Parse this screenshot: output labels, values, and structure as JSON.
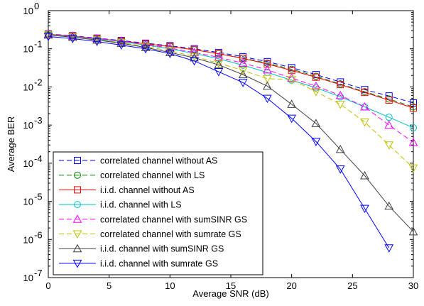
{
  "chart_data": {
    "type": "line",
    "xlabel": "Average SNR (dB)",
    "ylabel": "Average BER",
    "xlim": [
      0,
      30
    ],
    "ylim_exponents": [
      -7,
      0
    ],
    "y_scale": "log",
    "x_ticks": [
      "0",
      "5",
      "10",
      "15",
      "20",
      "25",
      "30"
    ],
    "y_ticks": [
      {
        "base": "10",
        "exp": "-7"
      },
      {
        "base": "10",
        "exp": "-6"
      },
      {
        "base": "10",
        "exp": "-5"
      },
      {
        "base": "10",
        "exp": "-4"
      },
      {
        "base": "10",
        "exp": "-3"
      },
      {
        "base": "10",
        "exp": "-2"
      },
      {
        "base": "10",
        "exp": "-1"
      },
      {
        "base": "10",
        "exp": "0"
      }
    ],
    "grid": false,
    "legend_position": "bottom-left",
    "series": [
      {
        "name": "correlated channel without AS",
        "color": "#0000ff",
        "dash": "dashed",
        "marker": "square",
        "x": [
          0,
          2,
          4,
          6,
          8,
          10,
          12,
          14,
          16,
          18,
          20,
          22,
          24,
          26,
          28,
          30
        ],
        "y": [
          0.245,
          0.22,
          0.19,
          0.165,
          0.14,
          0.12,
          0.1,
          0.08,
          0.062,
          0.046,
          0.032,
          0.021,
          0.0135,
          0.0085,
          0.0058,
          0.0038
        ]
      },
      {
        "name": "correlated channel with LS",
        "color": "#008000",
        "dash": "dashed",
        "marker": "circle",
        "x": [
          0,
          2,
          4,
          6,
          8,
          10,
          12,
          14,
          16,
          18,
          20,
          22,
          24,
          26,
          28,
          30
        ],
        "y": [
          0.24,
          0.215,
          0.185,
          0.16,
          0.135,
          0.115,
          0.094,
          0.075,
          0.057,
          0.042,
          0.029,
          0.019,
          0.012,
          0.0075,
          0.0048,
          0.003
        ]
      },
      {
        "name": "i.i.d. channel without AS",
        "color": "#ff0000",
        "dash": "solid",
        "marker": "square",
        "x": [
          0,
          2,
          4,
          6,
          8,
          10,
          12,
          14,
          16,
          18,
          20,
          22,
          24,
          26,
          28,
          30
        ],
        "y": [
          0.24,
          0.215,
          0.185,
          0.16,
          0.135,
          0.115,
          0.094,
          0.074,
          0.056,
          0.04,
          0.027,
          0.018,
          0.0115,
          0.0072,
          0.0045,
          0.0028
        ]
      },
      {
        "name": "i.i.d. channel with LS",
        "color": "#00bfbf",
        "dash": "solid",
        "marker": "circle",
        "x": [
          0,
          2,
          4,
          6,
          8,
          10,
          12,
          14,
          16,
          18,
          20,
          22,
          24,
          26,
          28,
          30
        ],
        "y": [
          0.235,
          0.21,
          0.18,
          0.155,
          0.125,
          0.1,
          0.075,
          0.055,
          0.037,
          0.024,
          0.015,
          0.0095,
          0.0055,
          0.003,
          0.0016,
          0.00085
        ]
      },
      {
        "name": "correlated channel with sumSINR GS",
        "color": "#ff00ff",
        "dash": "dashed",
        "marker": "triangle-up",
        "x": [
          0,
          2,
          4,
          6,
          8,
          10,
          12,
          14,
          16,
          18,
          20,
          22,
          24,
          26,
          28,
          30
        ],
        "y": [
          0.24,
          0.215,
          0.185,
          0.16,
          0.13,
          0.105,
          0.08,
          0.06,
          0.042,
          0.028,
          0.017,
          0.0105,
          0.006,
          0.003,
          0.001,
          0.00035
        ]
      },
      {
        "name": "correlated channel with sumrate GS",
        "color": "#bfbf00",
        "dash": "dashed",
        "marker": "triangle-down",
        "x": [
          0,
          2,
          4,
          6,
          8,
          10,
          12,
          14,
          16,
          18,
          20,
          22,
          24,
          26,
          28,
          30
        ],
        "y": [
          0.235,
          0.205,
          0.175,
          0.145,
          0.115,
          0.088,
          0.063,
          0.042,
          0.027,
          0.0165,
          0.0155,
          0.0075,
          0.0035,
          0.0012,
          0.0003,
          7.5e-05
        ]
      },
      {
        "name": "i.i.d. channel with sumSINR GS",
        "color": "#404040",
        "dash": "solid",
        "marker": "triangle-up",
        "x": [
          0,
          2,
          4,
          6,
          8,
          10,
          12,
          14,
          16,
          18,
          20,
          22,
          24,
          26,
          28,
          30
        ],
        "y": [
          0.23,
          0.2,
          0.17,
          0.14,
          0.108,
          0.08,
          0.058,
          0.038,
          0.021,
          0.0105,
          0.0035,
          0.0011,
          0.00023,
          4.7e-05,
          7.5e-06,
          1.6e-06
        ]
      },
      {
        "name": "i.i.d. channel with sumrate GS",
        "color": "#0000ff",
        "dash": "solid",
        "marker": "triangle-down",
        "x": [
          0,
          2,
          4,
          6,
          8,
          10,
          12,
          14,
          16,
          18,
          20,
          22,
          24,
          26,
          28
        ],
        "y": [
          0.21,
          0.185,
          0.155,
          0.125,
          0.1,
          0.075,
          0.048,
          0.025,
          0.013,
          0.005,
          0.0015,
          0.00037,
          7e-05,
          6.5e-06,
          6e-07
        ]
      }
    ]
  }
}
